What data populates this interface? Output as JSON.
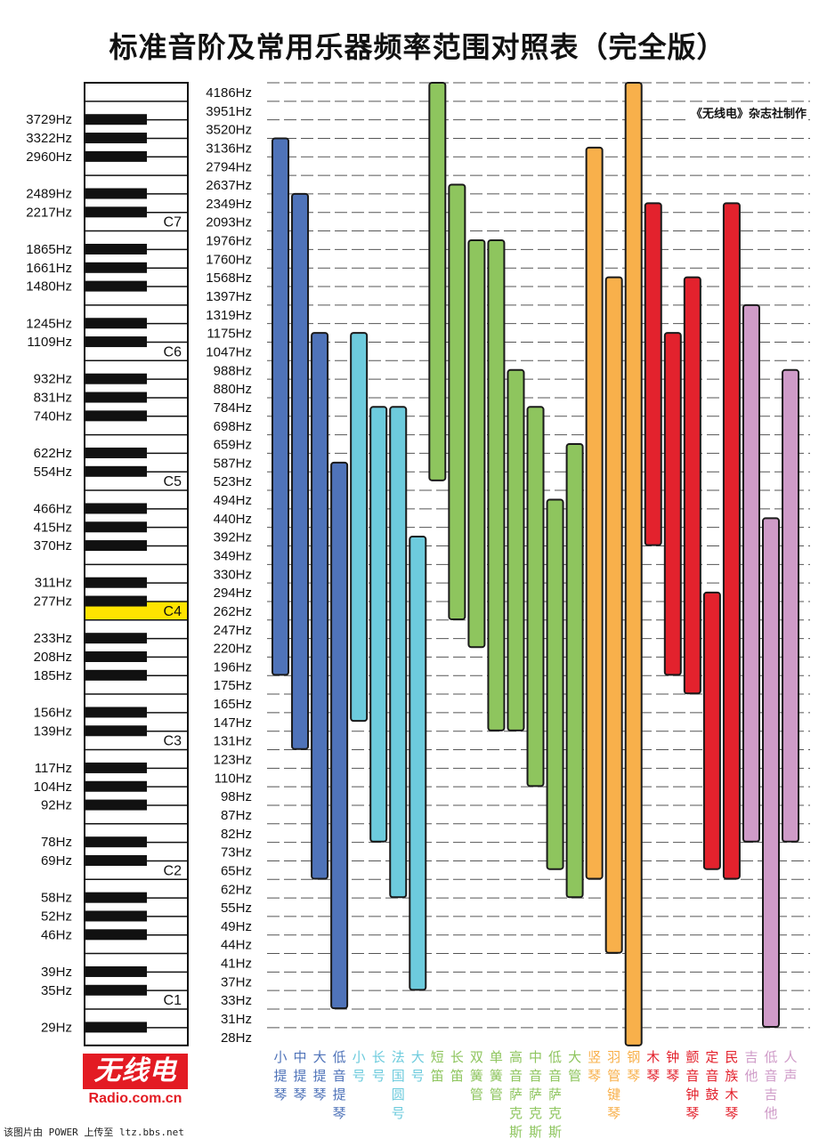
{
  "title": "标准音阶及常用乐器频率范围对照表（完全版）",
  "publisher": "《无线电》杂志社制作",
  "logo": {
    "brand": "无线电",
    "url": "Radio.com.cn"
  },
  "watermark": "该图片由 POWER 上传至 ltz.bbs.net",
  "chart_data": {
    "type": "range-bar",
    "title": "标准音阶及常用乐器频率范围对照表（完全版）",
    "grid": true,
    "y_scale": "log (one row per semitone on C-major white keys)",
    "y_ticks": [
      "4186Hz",
      "3951Hz",
      "3520Hz",
      "3136Hz",
      "2794Hz",
      "2637Hz",
      "2349Hz",
      "2093Hz",
      "1976Hz",
      "1760Hz",
      "1568Hz",
      "1397Hz",
      "1319Hz",
      "1175Hz",
      "1047Hz",
      "988Hz",
      "880Hz",
      "784Hz",
      "698Hz",
      "659Hz",
      "587Hz",
      "523Hz",
      "494Hz",
      "440Hz",
      "392Hz",
      "349Hz",
      "330Hz",
      "294Hz",
      "262Hz",
      "247Hz",
      "220Hz",
      "196Hz",
      "175Hz",
      "165Hz",
      "147Hz",
      "131Hz",
      "123Hz",
      "110Hz",
      "98Hz",
      "87Hz",
      "82Hz",
      "73Hz",
      "65Hz",
      "62Hz",
      "55Hz",
      "49Hz",
      "44Hz",
      "41Hz",
      "37Hz",
      "33Hz",
      "31Hz",
      "28Hz"
    ],
    "black_key_labels": [
      {
        "label": "3729Hz",
        "between": [
          3951,
          3520
        ]
      },
      {
        "label": "3322Hz",
        "between": [
          3520,
          3136
        ]
      },
      {
        "label": "2960Hz",
        "between": [
          3136,
          2794
        ]
      },
      {
        "label": "2489Hz",
        "between": [
          2637,
          2349
        ]
      },
      {
        "label": "2217Hz",
        "between": [
          2349,
          2093
        ]
      },
      {
        "label": "1865Hz",
        "between": [
          1976,
          1760
        ]
      },
      {
        "label": "1661Hz",
        "between": [
          1760,
          1568
        ]
      },
      {
        "label": "1480Hz",
        "between": [
          1568,
          1397
        ]
      },
      {
        "label": "1245Hz",
        "between": [
          1319,
          1175
        ]
      },
      {
        "label": "1109Hz",
        "between": [
          1175,
          1047
        ]
      },
      {
        "label": "932Hz",
        "between": [
          988,
          880
        ]
      },
      {
        "label": "831Hz",
        "between": [
          880,
          784
        ]
      },
      {
        "label": "740Hz",
        "between": [
          784,
          698
        ]
      },
      {
        "label": "622Hz",
        "between": [
          659,
          587
        ]
      },
      {
        "label": "554Hz",
        "between": [
          587,
          523
        ]
      },
      {
        "label": "466Hz",
        "between": [
          494,
          440
        ]
      },
      {
        "label": "415Hz",
        "between": [
          440,
          392
        ]
      },
      {
        "label": "370Hz",
        "between": [
          392,
          349
        ]
      },
      {
        "label": "311Hz",
        "between": [
          330,
          294
        ]
      },
      {
        "label": "277Hz",
        "between": [
          294,
          262
        ]
      },
      {
        "label": "233Hz",
        "between": [
          247,
          220
        ]
      },
      {
        "label": "208Hz",
        "between": [
          220,
          196
        ]
      },
      {
        "label": "185Hz",
        "between": [
          196,
          175
        ]
      },
      {
        "label": "156Hz",
        "between": [
          165,
          147
        ]
      },
      {
        "label": "139Hz",
        "between": [
          147,
          131
        ]
      },
      {
        "label": "117Hz",
        "between": [
          123,
          110
        ]
      },
      {
        "label": "104Hz",
        "between": [
          110,
          98
        ]
      },
      {
        "label": "92Hz",
        "between": [
          98,
          87
        ]
      },
      {
        "label": "78Hz",
        "between": [
          82,
          73
        ]
      },
      {
        "label": "69Hz",
        "between": [
          73,
          65
        ]
      },
      {
        "label": "58Hz",
        "between": [
          62,
          55
        ]
      },
      {
        "label": "52Hz",
        "between": [
          55,
          49
        ]
      },
      {
        "label": "46Hz",
        "between": [
          49,
          44
        ]
      },
      {
        "label": "39Hz",
        "between": [
          41,
          37
        ]
      },
      {
        "label": "35Hz",
        "between": [
          37,
          33
        ]
      },
      {
        "label": "29Hz",
        "between": [
          31,
          28
        ]
      }
    ],
    "octave_markers": [
      {
        "label": "C7",
        "hz": 2093,
        "highlight": false
      },
      {
        "label": "C6",
        "hz": 1047,
        "highlight": false
      },
      {
        "label": "C5",
        "hz": 523,
        "highlight": false
      },
      {
        "label": "C4",
        "hz": 262,
        "highlight": true,
        "highlight_color": "#ffe400"
      },
      {
        "label": "C3",
        "hz": 131,
        "highlight": false
      },
      {
        "label": "C2",
        "hz": 65,
        "highlight": false
      },
      {
        "label": "C1",
        "hz": 33,
        "highlight": false
      }
    ],
    "series": [
      {
        "name": "小提琴",
        "color": "#4f73b9",
        "high_hz": 3136,
        "low_hz": 196
      },
      {
        "name": "中提琴",
        "color": "#4f73b9",
        "high_hz": 2349,
        "low_hz": 131
      },
      {
        "name": "大提琴",
        "color": "#4f73b9",
        "high_hz": 1109,
        "low_hz": 65
      },
      {
        "name": "低音提琴",
        "color": "#4f73b9",
        "high_hz": 554,
        "low_hz": 33
      },
      {
        "name": "小号",
        "color": "#6dcbdd",
        "high_hz": 1109,
        "low_hz": 156
      },
      {
        "name": "长号",
        "color": "#6dcbdd",
        "high_hz": 740,
        "low_hz": 82
      },
      {
        "name": "法国圆号",
        "color": "#6dcbdd",
        "high_hz": 740,
        "low_hz": 62
      },
      {
        "name": "大号",
        "color": "#6dcbdd",
        "high_hz": 370,
        "low_hz": 37
      },
      {
        "name": "短笛",
        "color": "#8ec55e",
        "high_hz": 4186,
        "low_hz": 554
      },
      {
        "name": "长笛",
        "color": "#8ec55e",
        "high_hz": 2489,
        "low_hz": 262
      },
      {
        "name": "双簧管",
        "color": "#8ec55e",
        "high_hz": 1865,
        "low_hz": 233
      },
      {
        "name": "单簧管",
        "color": "#8ec55e",
        "high_hz": 1865,
        "low_hz": 147
      },
      {
        "name": "高音萨克斯",
        "color": "#8ec55e",
        "high_hz": 932,
        "low_hz": 147
      },
      {
        "name": "中音萨克斯",
        "color": "#8ec55e",
        "high_hz": 740,
        "low_hz": 110
      },
      {
        "name": "低音萨克斯",
        "color": "#8ec55e",
        "high_hz": 466,
        "low_hz": 69
      },
      {
        "name": "大管",
        "color": "#8ec55e",
        "high_hz": 622,
        "low_hz": 62
      },
      {
        "name": "竖琴",
        "color": "#f8b04b",
        "high_hz": 2960,
        "low_hz": 65
      },
      {
        "name": "羽管键琴",
        "color": "#f8b04b",
        "high_hz": 1480,
        "low_hz": 44
      },
      {
        "name": "钢琴",
        "color": "#f8b04b",
        "high_hz": 4186,
        "low_hz": 28
      },
      {
        "name": "木琴",
        "color": "#e3222d",
        "high_hz": 2217,
        "low_hz": 392
      },
      {
        "name": "钟琴",
        "color": "#e3222d",
        "high_hz": 1109,
        "low_hz": 196
      },
      {
        "name": "颤音钟琴",
        "color": "#e3222d",
        "high_hz": 1480,
        "low_hz": 175
      },
      {
        "name": "定音鼓",
        "color": "#e3222d",
        "high_hz": 277,
        "low_hz": 69
      },
      {
        "name": "民族木琴",
        "color": "#e3222d",
        "high_hz": 2217,
        "low_hz": 65
      },
      {
        "name": "吉他",
        "color": "#cf9bc8",
        "high_hz": 1319,
        "low_hz": 82
      },
      {
        "name": "低音吉他",
        "color": "#cf9bc8",
        "high_hz": 415,
        "low_hz": 31
      },
      {
        "name": "人声",
        "color": "#cf9bc8",
        "high_hz": 932,
        "low_hz": 82
      }
    ]
  }
}
